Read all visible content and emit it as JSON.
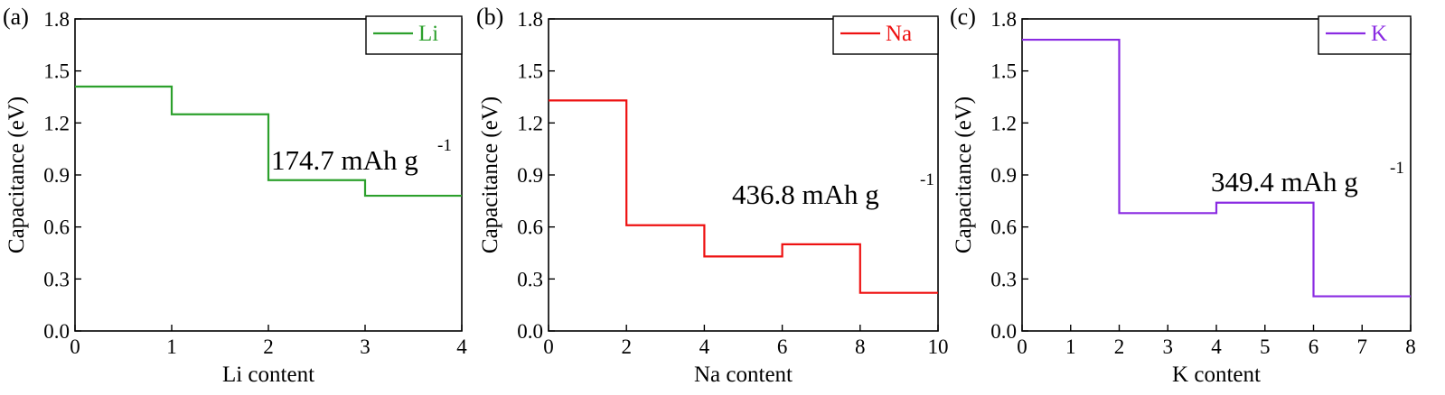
{
  "chart_data": [
    {
      "type": "line",
      "step": true,
      "panel_label": "(a)",
      "xlabel": "Li content",
      "ylabel": "Capacitance (eV)",
      "xlim": [
        0,
        4
      ],
      "ylim": [
        0,
        1.8
      ],
      "xticks": [
        "0",
        "1",
        "2",
        "3",
        "4"
      ],
      "yticks": [
        "0.0",
        "0.3",
        "0.6",
        "0.9",
        "1.2",
        "1.5",
        "1.8"
      ],
      "series": [
        {
          "name": "Li",
          "color": "#2ca02c",
          "x": [
            0,
            1,
            2,
            3,
            4
          ],
          "values": [
            1.41,
            1.25,
            0.87,
            0.78,
            0.78
          ]
        }
      ],
      "annotation": {
        "text": "174.7 mAh g",
        "superscript": "-1"
      },
      "legend_position": "top-right",
      "grid": false
    },
    {
      "type": "line",
      "step": true,
      "panel_label": "(b)",
      "xlabel": "Na content",
      "ylabel": "Capacitance (eV)",
      "xlim": [
        0,
        10
      ],
      "ylim": [
        0,
        1.8
      ],
      "xticks": [
        "0",
        "2",
        "4",
        "6",
        "8",
        "10"
      ],
      "yticks": [
        "0.0",
        "0.3",
        "0.6",
        "0.9",
        "1.2",
        "1.5",
        "1.8"
      ],
      "series": [
        {
          "name": "Na",
          "color": "#ee1111",
          "x": [
            0,
            2,
            4,
            6,
            8,
            10
          ],
          "values": [
            1.33,
            0.61,
            0.43,
            0.5,
            0.22,
            0.22
          ]
        }
      ],
      "annotation": {
        "text": "436.8 mAh g",
        "superscript": "-1"
      },
      "legend_position": "top-right",
      "grid": false
    },
    {
      "type": "line",
      "step": true,
      "panel_label": "(c)",
      "xlabel": "K content",
      "ylabel": "Capacitance (eV)",
      "xlim": [
        0,
        8
      ],
      "ylim": [
        0,
        1.8
      ],
      "xticks": [
        "0",
        "1",
        "2",
        "3",
        "4",
        "5",
        "6",
        "7",
        "8"
      ],
      "yticks": [
        "0.0",
        "0.3",
        "0.6",
        "0.9",
        "1.2",
        "1.5",
        "1.8"
      ],
      "series": [
        {
          "name": "K",
          "color": "#8a2be2",
          "x": [
            0,
            2,
            4,
            6,
            8
          ],
          "values": [
            1.68,
            0.68,
            0.74,
            0.2,
            0.2
          ]
        }
      ],
      "annotation": {
        "text": "349.4 mAh g",
        "superscript": "-1"
      },
      "legend_position": "top-right",
      "grid": false
    }
  ]
}
